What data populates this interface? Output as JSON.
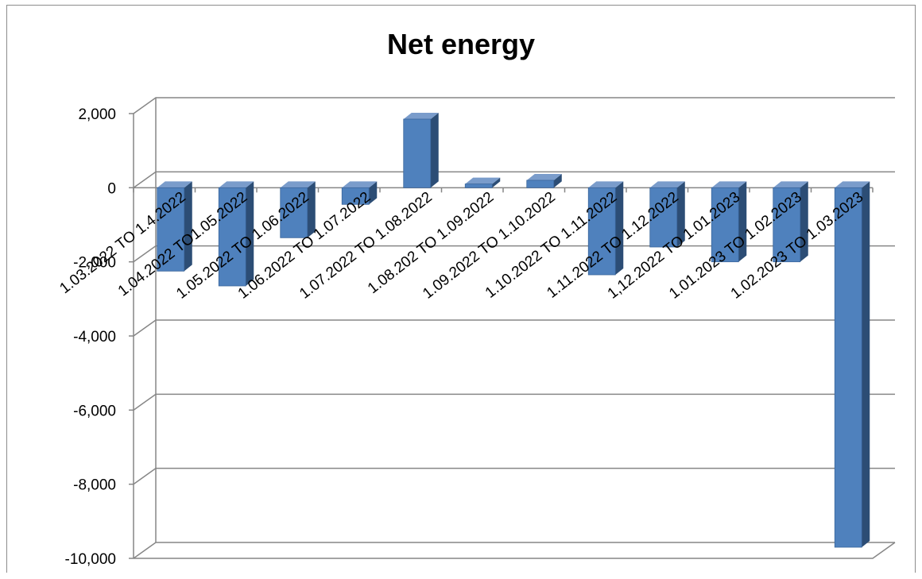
{
  "chart_data": {
    "type": "bar",
    "title": "Net energy",
    "xlabel": "",
    "ylabel": "",
    "ylim": [
      -10000,
      2000
    ],
    "yticks": [
      2000,
      0,
      -2000,
      -4000,
      -6000,
      -8000,
      -10000
    ],
    "ytick_labels": [
      "2,000",
      "0",
      "-2,000",
      "-4,000",
      "-6,000",
      "-8,000",
      "-10,000"
    ],
    "grid": true,
    "legend": "none",
    "bar_color": "#4F81BD",
    "categories": [
      "1.03.2022 TO 1.4.2022",
      "1.04.2022 TO1.05.2022",
      "1.05.2022 TO 1.06.2022",
      "1.06.2022 TO 1.07.2022",
      "1.07.2022 TO 1.08.2022",
      "1.08.202 TO 1.09.2022",
      "1.09.2022 TO 1.10.2022",
      "1.10.2022 TO 1.11.2022",
      "1.11.2022 TO 1.12.2022",
      "1,12.2022 TO 1.01.2023",
      "1.01.2023 TO 1.02.2023",
      "1.02.2023 TO 1.03.2023"
    ],
    "values": [
      -2250,
      -2650,
      -1350,
      -450,
      1850,
      100,
      200,
      -2350,
      -1600,
      -2000,
      -2000,
      -9700
    ]
  }
}
